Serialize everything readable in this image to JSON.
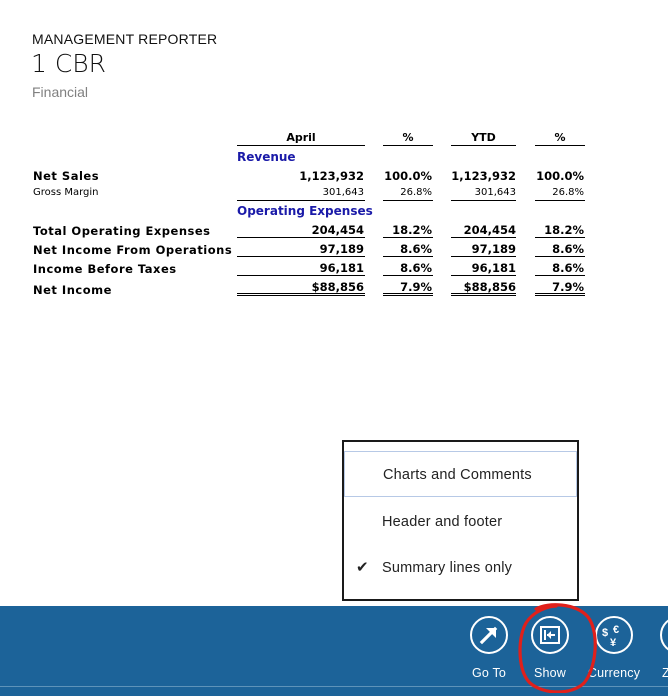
{
  "header": {
    "app_title": "MANAGEMENT REPORTER",
    "page_title": "1 CBR",
    "subtitle": "Financial"
  },
  "report": {
    "columns": [
      "April",
      "%",
      "YTD",
      "%"
    ],
    "sections": {
      "revenue": "Revenue",
      "operating_expenses": "Operating Expenses"
    },
    "rows": [
      {
        "label": "Net Sales",
        "values": [
          "1,123,932",
          "100.0%",
          "1,123,932",
          "100.0%"
        ]
      },
      {
        "label": "Gross Margin",
        "values": [
          "301,643",
          "26.8%",
          "301,643",
          "26.8%"
        ]
      },
      {
        "label": "Total Operating Expenses",
        "values": [
          "204,454",
          "18.2%",
          "204,454",
          "18.2%"
        ]
      },
      {
        "label": "Net Income From Operations",
        "values": [
          "97,189",
          "8.6%",
          "97,189",
          "8.6%"
        ]
      },
      {
        "label": "Income Before Taxes",
        "values": [
          "96,181",
          "8.6%",
          "96,181",
          "8.6%"
        ]
      },
      {
        "label": "Net Income",
        "values": [
          "$88,856",
          "7.9%",
          "$88,856",
          "7.9%"
        ]
      }
    ]
  },
  "show_menu": {
    "items": [
      {
        "label": "Charts and Comments",
        "checked": false
      },
      {
        "label": "Header and footer",
        "checked": false
      },
      {
        "label": "Summary lines only",
        "checked": true
      }
    ],
    "check_glyph": "✔"
  },
  "appbar": {
    "buttons": [
      {
        "label": "Go To",
        "icon": "arrow-up-right-icon"
      },
      {
        "label": "Show",
        "icon": "show-panel-icon"
      },
      {
        "label": "Currency",
        "icon": "currency-icon"
      },
      {
        "label": "Z",
        "icon": "zoom-icon"
      }
    ],
    "currency_symbols": {
      "dollar": "$",
      "euro": "€",
      "yen": "¥"
    },
    "colors": {
      "bar": "#1c6399",
      "annotation": "#e0201b"
    }
  }
}
